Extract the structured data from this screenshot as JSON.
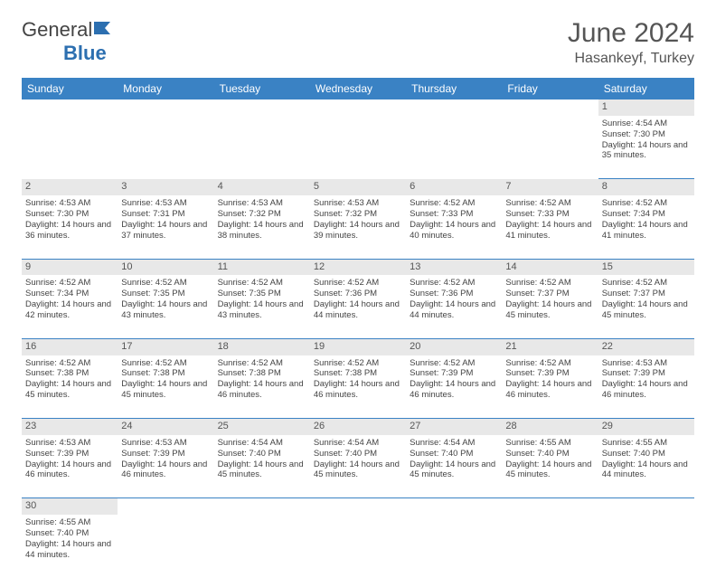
{
  "brand": {
    "word1": "General",
    "word2": "Blue"
  },
  "header": {
    "month": "June 2024",
    "location": "Hasankeyf, Turkey"
  },
  "daynames": [
    "Sunday",
    "Monday",
    "Tuesday",
    "Wednesday",
    "Thursday",
    "Friday",
    "Saturday"
  ],
  "colors": {
    "headerBg": "#3a82c4",
    "ruleColor": "#3a82c4",
    "daynumBg": "#e8e8e8",
    "text": "#444"
  },
  "weeks": [
    {
      "nums": [
        "",
        "",
        "",
        "",
        "",
        "",
        "1"
      ],
      "cells": [
        null,
        null,
        null,
        null,
        null,
        null,
        {
          "sunrise": "Sunrise: 4:54 AM",
          "sunset": "Sunset: 7:30 PM",
          "daylight": "Daylight: 14 hours and 35 minutes."
        }
      ]
    },
    {
      "nums": [
        "2",
        "3",
        "4",
        "5",
        "6",
        "7",
        "8"
      ],
      "cells": [
        {
          "sunrise": "Sunrise: 4:53 AM",
          "sunset": "Sunset: 7:30 PM",
          "daylight": "Daylight: 14 hours and 36 minutes."
        },
        {
          "sunrise": "Sunrise: 4:53 AM",
          "sunset": "Sunset: 7:31 PM",
          "daylight": "Daylight: 14 hours and 37 minutes."
        },
        {
          "sunrise": "Sunrise: 4:53 AM",
          "sunset": "Sunset: 7:32 PM",
          "daylight": "Daylight: 14 hours and 38 minutes."
        },
        {
          "sunrise": "Sunrise: 4:53 AM",
          "sunset": "Sunset: 7:32 PM",
          "daylight": "Daylight: 14 hours and 39 minutes."
        },
        {
          "sunrise": "Sunrise: 4:52 AM",
          "sunset": "Sunset: 7:33 PM",
          "daylight": "Daylight: 14 hours and 40 minutes."
        },
        {
          "sunrise": "Sunrise: 4:52 AM",
          "sunset": "Sunset: 7:33 PM",
          "daylight": "Daylight: 14 hours and 41 minutes."
        },
        {
          "sunrise": "Sunrise: 4:52 AM",
          "sunset": "Sunset: 7:34 PM",
          "daylight": "Daylight: 14 hours and 41 minutes."
        }
      ]
    },
    {
      "nums": [
        "9",
        "10",
        "11",
        "12",
        "13",
        "14",
        "15"
      ],
      "cells": [
        {
          "sunrise": "Sunrise: 4:52 AM",
          "sunset": "Sunset: 7:34 PM",
          "daylight": "Daylight: 14 hours and 42 minutes."
        },
        {
          "sunrise": "Sunrise: 4:52 AM",
          "sunset": "Sunset: 7:35 PM",
          "daylight": "Daylight: 14 hours and 43 minutes."
        },
        {
          "sunrise": "Sunrise: 4:52 AM",
          "sunset": "Sunset: 7:35 PM",
          "daylight": "Daylight: 14 hours and 43 minutes."
        },
        {
          "sunrise": "Sunrise: 4:52 AM",
          "sunset": "Sunset: 7:36 PM",
          "daylight": "Daylight: 14 hours and 44 minutes."
        },
        {
          "sunrise": "Sunrise: 4:52 AM",
          "sunset": "Sunset: 7:36 PM",
          "daylight": "Daylight: 14 hours and 44 minutes."
        },
        {
          "sunrise": "Sunrise: 4:52 AM",
          "sunset": "Sunset: 7:37 PM",
          "daylight": "Daylight: 14 hours and 45 minutes."
        },
        {
          "sunrise": "Sunrise: 4:52 AM",
          "sunset": "Sunset: 7:37 PM",
          "daylight": "Daylight: 14 hours and 45 minutes."
        }
      ]
    },
    {
      "nums": [
        "16",
        "17",
        "18",
        "19",
        "20",
        "21",
        "22"
      ],
      "cells": [
        {
          "sunrise": "Sunrise: 4:52 AM",
          "sunset": "Sunset: 7:38 PM",
          "daylight": "Daylight: 14 hours and 45 minutes."
        },
        {
          "sunrise": "Sunrise: 4:52 AM",
          "sunset": "Sunset: 7:38 PM",
          "daylight": "Daylight: 14 hours and 45 minutes."
        },
        {
          "sunrise": "Sunrise: 4:52 AM",
          "sunset": "Sunset: 7:38 PM",
          "daylight": "Daylight: 14 hours and 46 minutes."
        },
        {
          "sunrise": "Sunrise: 4:52 AM",
          "sunset": "Sunset: 7:38 PM",
          "daylight": "Daylight: 14 hours and 46 minutes."
        },
        {
          "sunrise": "Sunrise: 4:52 AM",
          "sunset": "Sunset: 7:39 PM",
          "daylight": "Daylight: 14 hours and 46 minutes."
        },
        {
          "sunrise": "Sunrise: 4:52 AM",
          "sunset": "Sunset: 7:39 PM",
          "daylight": "Daylight: 14 hours and 46 minutes."
        },
        {
          "sunrise": "Sunrise: 4:53 AM",
          "sunset": "Sunset: 7:39 PM",
          "daylight": "Daylight: 14 hours and 46 minutes."
        }
      ]
    },
    {
      "nums": [
        "23",
        "24",
        "25",
        "26",
        "27",
        "28",
        "29"
      ],
      "cells": [
        {
          "sunrise": "Sunrise: 4:53 AM",
          "sunset": "Sunset: 7:39 PM",
          "daylight": "Daylight: 14 hours and 46 minutes."
        },
        {
          "sunrise": "Sunrise: 4:53 AM",
          "sunset": "Sunset: 7:39 PM",
          "daylight": "Daylight: 14 hours and 46 minutes."
        },
        {
          "sunrise": "Sunrise: 4:54 AM",
          "sunset": "Sunset: 7:40 PM",
          "daylight": "Daylight: 14 hours and 45 minutes."
        },
        {
          "sunrise": "Sunrise: 4:54 AM",
          "sunset": "Sunset: 7:40 PM",
          "daylight": "Daylight: 14 hours and 45 minutes."
        },
        {
          "sunrise": "Sunrise: 4:54 AM",
          "sunset": "Sunset: 7:40 PM",
          "daylight": "Daylight: 14 hours and 45 minutes."
        },
        {
          "sunrise": "Sunrise: 4:55 AM",
          "sunset": "Sunset: 7:40 PM",
          "daylight": "Daylight: 14 hours and 45 minutes."
        },
        {
          "sunrise": "Sunrise: 4:55 AM",
          "sunset": "Sunset: 7:40 PM",
          "daylight": "Daylight: 14 hours and 44 minutes."
        }
      ]
    },
    {
      "nums": [
        "30",
        "",
        "",
        "",
        "",
        "",
        ""
      ],
      "cells": [
        {
          "sunrise": "Sunrise: 4:55 AM",
          "sunset": "Sunset: 7:40 PM",
          "daylight": "Daylight: 14 hours and 44 minutes."
        },
        null,
        null,
        null,
        null,
        null,
        null
      ]
    }
  ]
}
